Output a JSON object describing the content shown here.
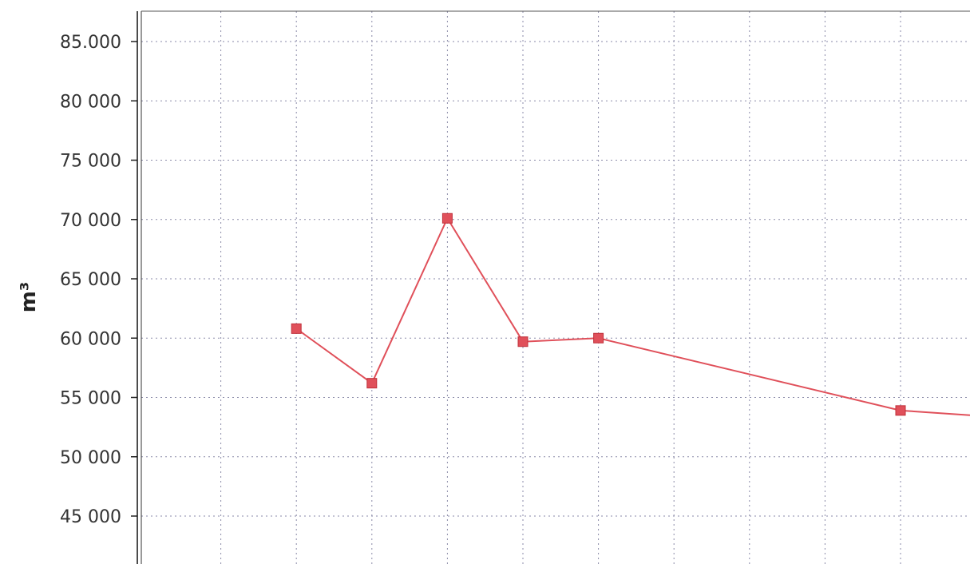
{
  "chart_data": {
    "type": "line",
    "title": "",
    "xlabel": "",
    "ylabel": "m³",
    "ylim": [
      41000,
      87000
    ],
    "yticks": [
      45000,
      50000,
      55000,
      60000,
      65000,
      70000,
      75000,
      80000,
      85000
    ],
    "ytick_labels": [
      "45 000",
      "50 000",
      "55 000",
      "60 000",
      "65 000",
      "70 000",
      "75 000",
      "80 000",
      "85.000"
    ],
    "grid": true,
    "series": [
      {
        "color": "#e0505a",
        "marker": "square",
        "x": [
          2,
          3,
          4,
          5,
          6,
          10,
          11
        ],
        "values": [
          60800,
          56200,
          70100,
          59700,
          60000,
          53900,
          53500
        ]
      }
    ],
    "xlim": [
      0,
      11
    ],
    "x_gridlines": [
      1,
      2,
      3,
      4,
      5,
      6,
      7,
      8,
      9,
      10,
      11
    ]
  }
}
